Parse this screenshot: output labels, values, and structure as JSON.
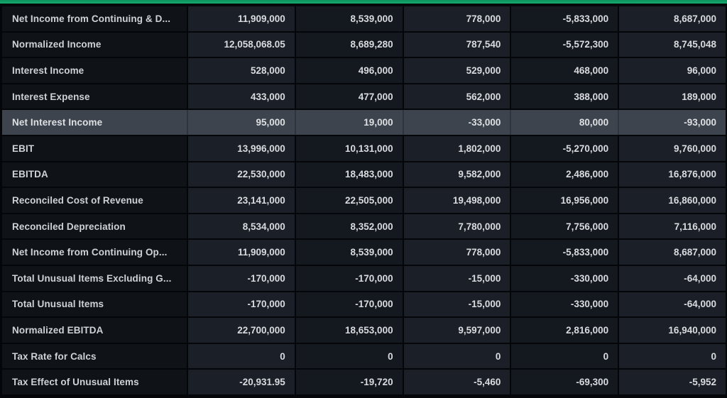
{
  "theme": {
    "accent_green": "#12a36b",
    "page_background": "#04060a",
    "label_cell_background": "#0f1318",
    "data_cell_background_odd": "#1a1f28",
    "data_cell_background_even": "#14181f",
    "highlight_row_background": "#3d444d",
    "text_color": "#d9dcdf"
  },
  "table": {
    "columns_count": 5,
    "rows": [
      {
        "label": "Net Income from Continuing & D...",
        "values": [
          "11,909,000",
          "8,539,000",
          "778,000",
          "-5,833,000",
          "8,687,000"
        ],
        "highlighted": false
      },
      {
        "label": "Normalized Income",
        "values": [
          "12,058,068.05",
          "8,689,280",
          "787,540",
          "-5,572,300",
          "8,745,048"
        ],
        "highlighted": false
      },
      {
        "label": "Interest Income",
        "values": [
          "528,000",
          "496,000",
          "529,000",
          "468,000",
          "96,000"
        ],
        "highlighted": false
      },
      {
        "label": "Interest Expense",
        "values": [
          "433,000",
          "477,000",
          "562,000",
          "388,000",
          "189,000"
        ],
        "highlighted": false
      },
      {
        "label": "Net Interest Income",
        "values": [
          "95,000",
          "19,000",
          "-33,000",
          "80,000",
          "-93,000"
        ],
        "highlighted": true
      },
      {
        "label": "EBIT",
        "values": [
          "13,996,000",
          "10,131,000",
          "1,802,000",
          "-5,270,000",
          "9,760,000"
        ],
        "highlighted": false
      },
      {
        "label": "EBITDA",
        "values": [
          "22,530,000",
          "18,483,000",
          "9,582,000",
          "2,486,000",
          "16,876,000"
        ],
        "highlighted": false
      },
      {
        "label": "Reconciled Cost of Revenue",
        "values": [
          "23,141,000",
          "22,505,000",
          "19,498,000",
          "16,956,000",
          "16,860,000"
        ],
        "highlighted": false
      },
      {
        "label": "Reconciled Depreciation",
        "values": [
          "8,534,000",
          "8,352,000",
          "7,780,000",
          "7,756,000",
          "7,116,000"
        ],
        "highlighted": false
      },
      {
        "label": "Net Income from Continuing Op...",
        "values": [
          "11,909,000",
          "8,539,000",
          "778,000",
          "-5,833,000",
          "8,687,000"
        ],
        "highlighted": false
      },
      {
        "label": "Total Unusual Items Excluding G...",
        "values": [
          "-170,000",
          "-170,000",
          "-15,000",
          "-330,000",
          "-64,000"
        ],
        "highlighted": false
      },
      {
        "label": "Total Unusual Items",
        "values": [
          "-170,000",
          "-170,000",
          "-15,000",
          "-330,000",
          "-64,000"
        ],
        "highlighted": false
      },
      {
        "label": "Normalized EBITDA",
        "values": [
          "22,700,000",
          "18,653,000",
          "9,597,000",
          "2,816,000",
          "16,940,000"
        ],
        "highlighted": false
      },
      {
        "label": "Tax Rate for Calcs",
        "values": [
          "0",
          "0",
          "0",
          "0",
          "0"
        ],
        "highlighted": false
      },
      {
        "label": "Tax Effect of Unusual Items",
        "values": [
          "-20,931.95",
          "-19,720",
          "-5,460",
          "-69,300",
          "-5,952"
        ],
        "highlighted": false
      }
    ]
  }
}
